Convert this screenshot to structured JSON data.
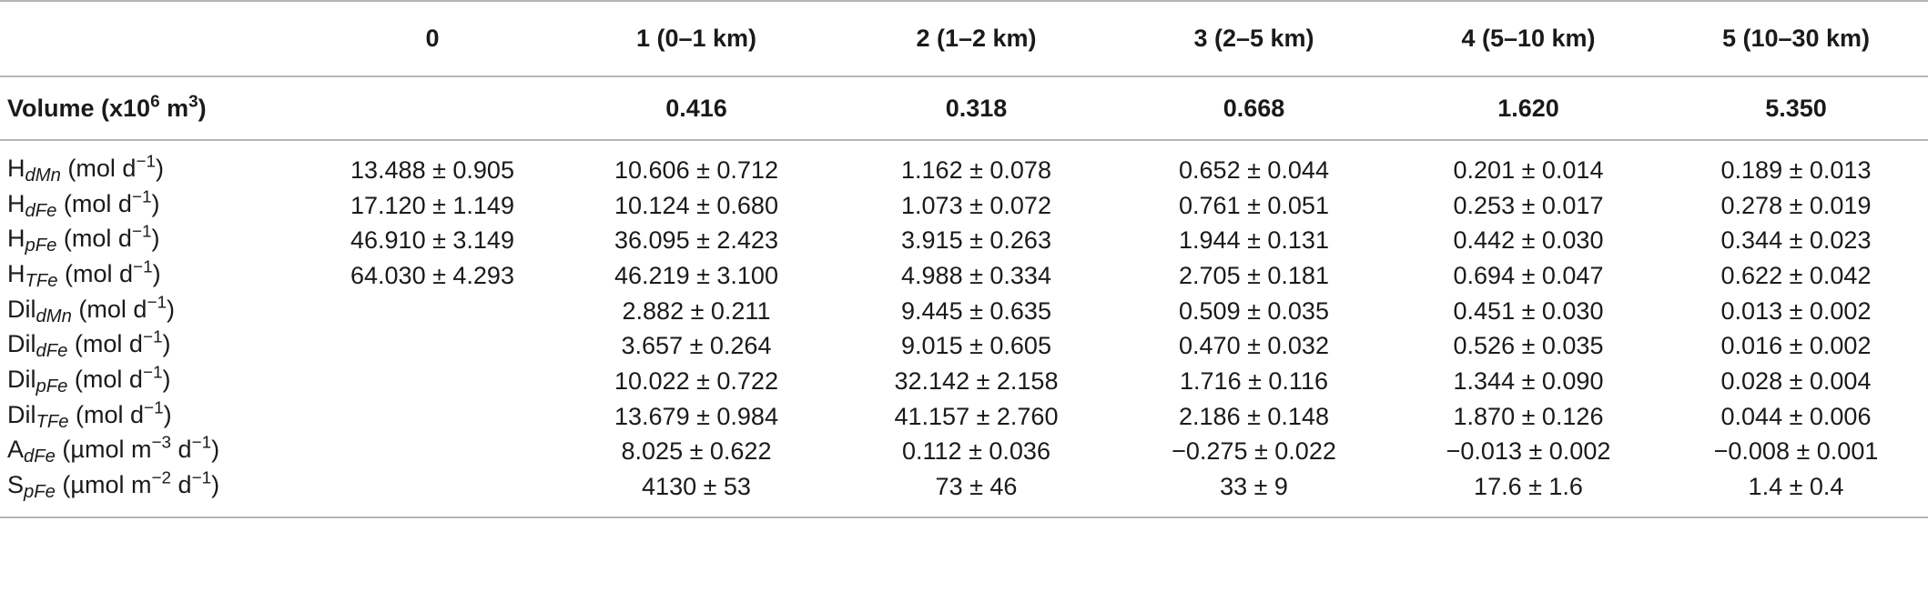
{
  "table": {
    "columns": [
      "",
      "0",
      "1 (0–1 km)",
      "2 (1–2 km)",
      "3 (2–5 km)",
      "4 (5–10 km)",
      "5 (10–30 km)"
    ],
    "volume": {
      "label_prefix": "Volume (x10",
      "label_exp1": "6",
      "label_mid": " m",
      "label_exp2": "3",
      "label_suffix": ")",
      "values": [
        "",
        "0.416",
        "0.318",
        "0.668",
        "1.620",
        "5.350"
      ]
    },
    "rows": [
      {
        "base": "H",
        "sub": "dMn",
        "unit_prefix": " (mol d",
        "unit_exp": "−1",
        "unit_suffix": ")",
        "values": [
          "13.488 ± 0.905",
          "10.606 ± 0.712",
          "1.162 ± 0.078",
          "0.652 ± 0.044",
          "0.201 ± 0.014",
          "0.189 ± 0.013"
        ]
      },
      {
        "base": "H",
        "sub": "dFe",
        "unit_prefix": " (mol d",
        "unit_exp": "−1",
        "unit_suffix": ")",
        "values": [
          "17.120 ± 1.149",
          "10.124 ± 0.680",
          "1.073 ± 0.072",
          "0.761 ± 0.051",
          "0.253 ± 0.017",
          "0.278 ± 0.019"
        ]
      },
      {
        "base": "H",
        "sub": "pFe",
        "unit_prefix": " (mol d",
        "unit_exp": "−1",
        "unit_suffix": ")",
        "values": [
          "46.910 ± 3.149",
          "36.095 ± 2.423",
          "3.915 ± 0.263",
          "1.944 ± 0.131",
          "0.442 ± 0.030",
          "0.344 ± 0.023"
        ]
      },
      {
        "base": "H",
        "sub": "TFe",
        "unit_prefix": " (mol d",
        "unit_exp": "−1",
        "unit_suffix": ")",
        "values": [
          "64.030 ± 4.293",
          "46.219 ± 3.100",
          "4.988 ± 0.334",
          "2.705 ± 0.181",
          "0.694 ± 0.047",
          "0.622 ± 0.042"
        ]
      },
      {
        "base": "Dil",
        "sub": "dMn",
        "unit_prefix": " (mol d",
        "unit_exp": "−1",
        "unit_suffix": ")",
        "values": [
          "",
          "2.882 ± 0.211",
          "9.445 ± 0.635",
          "0.509 ± 0.035",
          "0.451 ± 0.030",
          "0.013 ± 0.002"
        ]
      },
      {
        "base": "Dil",
        "sub": "dFe",
        "unit_prefix": " (mol d",
        "unit_exp": "−1",
        "unit_suffix": ")",
        "values": [
          "",
          "3.657 ± 0.264",
          "9.015 ± 0.605",
          "0.470 ± 0.032",
          "0.526 ± 0.035",
          "0.016 ± 0.002"
        ]
      },
      {
        "base": "Dil",
        "sub": "pFe",
        "unit_prefix": " (mol d",
        "unit_exp": "−1",
        "unit_suffix": ")",
        "values": [
          "",
          "10.022 ± 0.722",
          "32.142 ± 2.158",
          "1.716 ± 0.116",
          "1.344 ± 0.090",
          "0.028 ± 0.004"
        ]
      },
      {
        "base": "Dil",
        "sub": "TFe",
        "unit_prefix": " (mol d",
        "unit_exp": "−1",
        "unit_suffix": ")",
        "values": [
          "",
          "13.679 ± 0.984",
          "41.157 ± 2.760",
          "2.186 ± 0.148",
          "1.870 ± 0.126",
          "0.044 ± 0.006"
        ]
      },
      {
        "base": "A",
        "sub": "dFe",
        "unit_prefix": " (µmol m",
        "unit_exp": "−3",
        "unit_suffix": " d",
        "unit_exp2": "−1",
        "unit_suffix2": ")",
        "values": [
          "",
          "8.025 ± 0.622",
          "0.112 ± 0.036",
          "−0.275 ± 0.022",
          "−0.013 ± 0.002",
          "−0.008 ± 0.001"
        ]
      },
      {
        "base": "S",
        "sub": "pFe",
        "unit_prefix": " (µmol m",
        "unit_exp": "−2",
        "unit_suffix": " d",
        "unit_exp2": "−1",
        "unit_suffix2": ")",
        "values": [
          "",
          "4130 ± 53",
          "73 ± 46",
          "33 ± 9",
          "17.6 ± 1.6",
          "1.4 ± 0.4"
        ]
      }
    ]
  }
}
